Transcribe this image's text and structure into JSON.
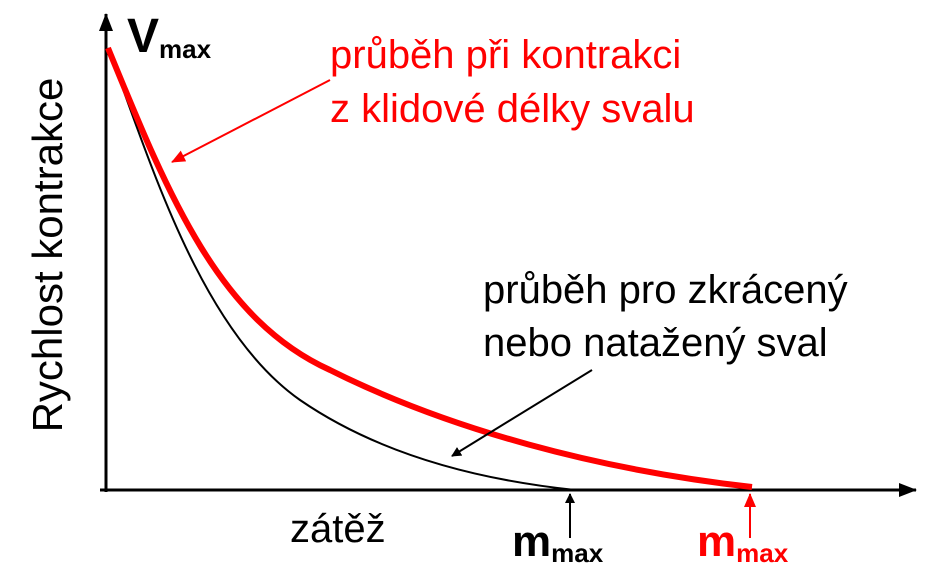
{
  "y_axis_label": "Rychlost kontrakce",
  "x_axis_label": "zátěž",
  "v_max": {
    "symbol": "V",
    "subscript": "max"
  },
  "annotations": {
    "resting_length": [
      "průběh při kontrakci",
      "z klidové délky svalu"
    ],
    "shortened_or_stretched": [
      "průběh pro zkrácený",
      "nebo natažený sval"
    ]
  },
  "m_max_labels": [
    {
      "symbol": "m",
      "subscript": "max"
    },
    {
      "symbol": "m",
      "subscript": "max"
    }
  ]
}
